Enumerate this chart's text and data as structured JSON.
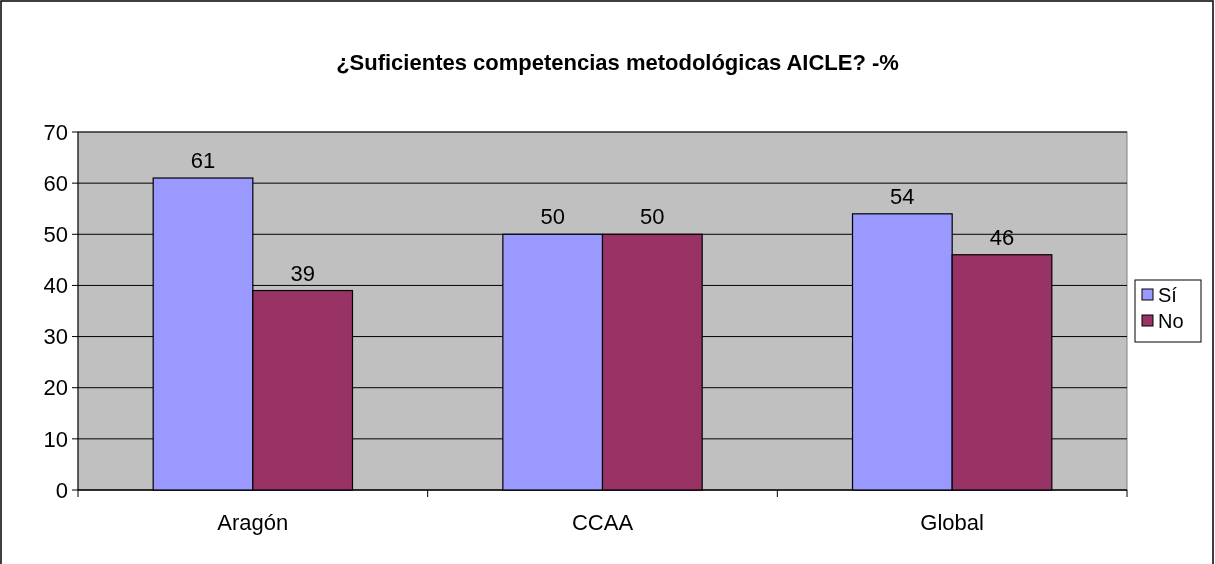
{
  "chart_data": {
    "type": "bar",
    "title": "¿Suficientes competencias metodológicas AICLE? -%",
    "categories": [
      "Aragón",
      "CCAA",
      "Global"
    ],
    "series": [
      {
        "name": "Sí",
        "color": "#9999ff",
        "values": [
          61,
          50,
          54
        ]
      },
      {
        "name": "No",
        "color": "#993366",
        "values": [
          39,
          50,
          46
        ]
      }
    ],
    "ylim": [
      0,
      70
    ],
    "yticks": [
      0,
      10,
      20,
      30,
      40,
      50,
      60,
      70
    ],
    "grid": "y",
    "legend": "right",
    "data_labels": true
  }
}
